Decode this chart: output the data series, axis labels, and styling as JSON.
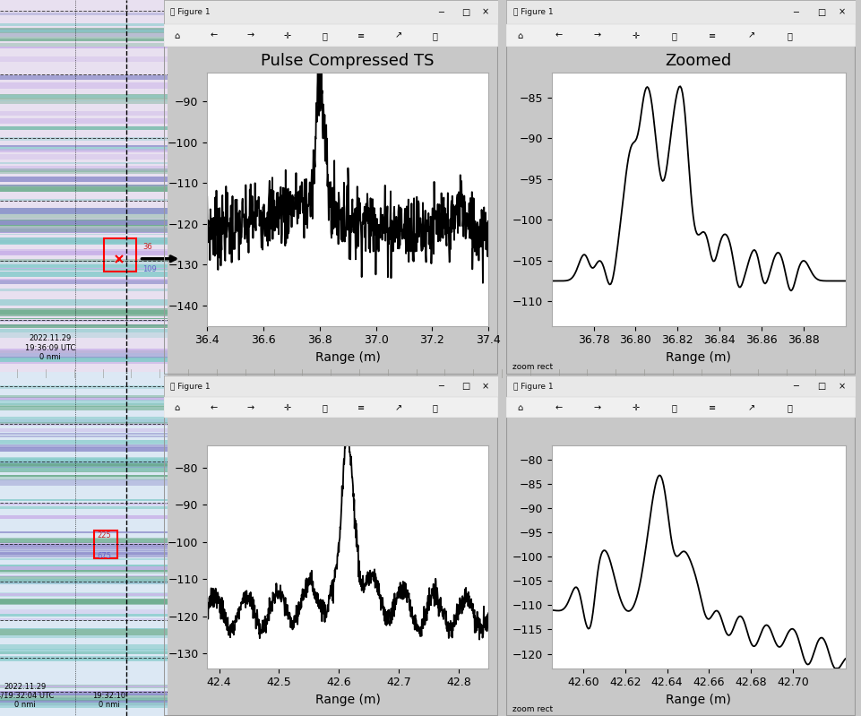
{
  "plot1": {
    "title": "Pulse Compressed TS",
    "xlabel": "Range (m)",
    "xlim": [
      36.4,
      37.4
    ],
    "ylim": [
      -145,
      -83
    ],
    "yticks": [
      -90,
      -100,
      -110,
      -120,
      -130,
      -140
    ],
    "xticks": [
      36.4,
      36.6,
      36.8,
      37.0,
      37.2,
      37.4
    ],
    "peak_x": 36.8,
    "peak_y": -86.5
  },
  "plot2": {
    "title": "Zoomed",
    "xlabel": "Range (m)",
    "xlim": [
      36.76,
      36.9
    ],
    "ylim": [
      -113,
      -82
    ],
    "yticks": [
      -85,
      -90,
      -95,
      -100,
      -105,
      -110
    ],
    "xticks": [
      36.78,
      36.8,
      36.82,
      36.84,
      36.86,
      36.88
    ],
    "peak_x": 36.806,
    "peak_y": -84.5
  },
  "plot3": {
    "title": "",
    "xlabel": "Range (m)",
    "xlim": [
      42.38,
      42.85
    ],
    "ylim": [
      -134,
      -74
    ],
    "yticks": [
      -80,
      -90,
      -100,
      -110,
      -120,
      -130
    ],
    "xticks": [
      42.4,
      42.5,
      42.6,
      42.7,
      42.8
    ],
    "peak_x": 42.615,
    "peak_y": -78.5
  },
  "plot4": {
    "title": "",
    "xlabel": "Range (m)",
    "xlim": [
      42.585,
      42.725
    ],
    "ylim": [
      -123,
      -77
    ],
    "yticks": [
      -80,
      -85,
      -90,
      -95,
      -100,
      -105,
      -110,
      -115,
      -120
    ],
    "xticks": [
      42.6,
      42.62,
      42.64,
      42.66,
      42.68,
      42.7
    ],
    "peak_x": 42.637,
    "peak_y": -79.2
  },
  "window_bg": "#f0f0f0",
  "plot_bg": "#ffffff",
  "line_color": "#000000",
  "desktop_bg": "#c8c8c8",
  "sonar_top_bg": "#d8d0e8",
  "sonar_bot_bg": "#dce4f0"
}
